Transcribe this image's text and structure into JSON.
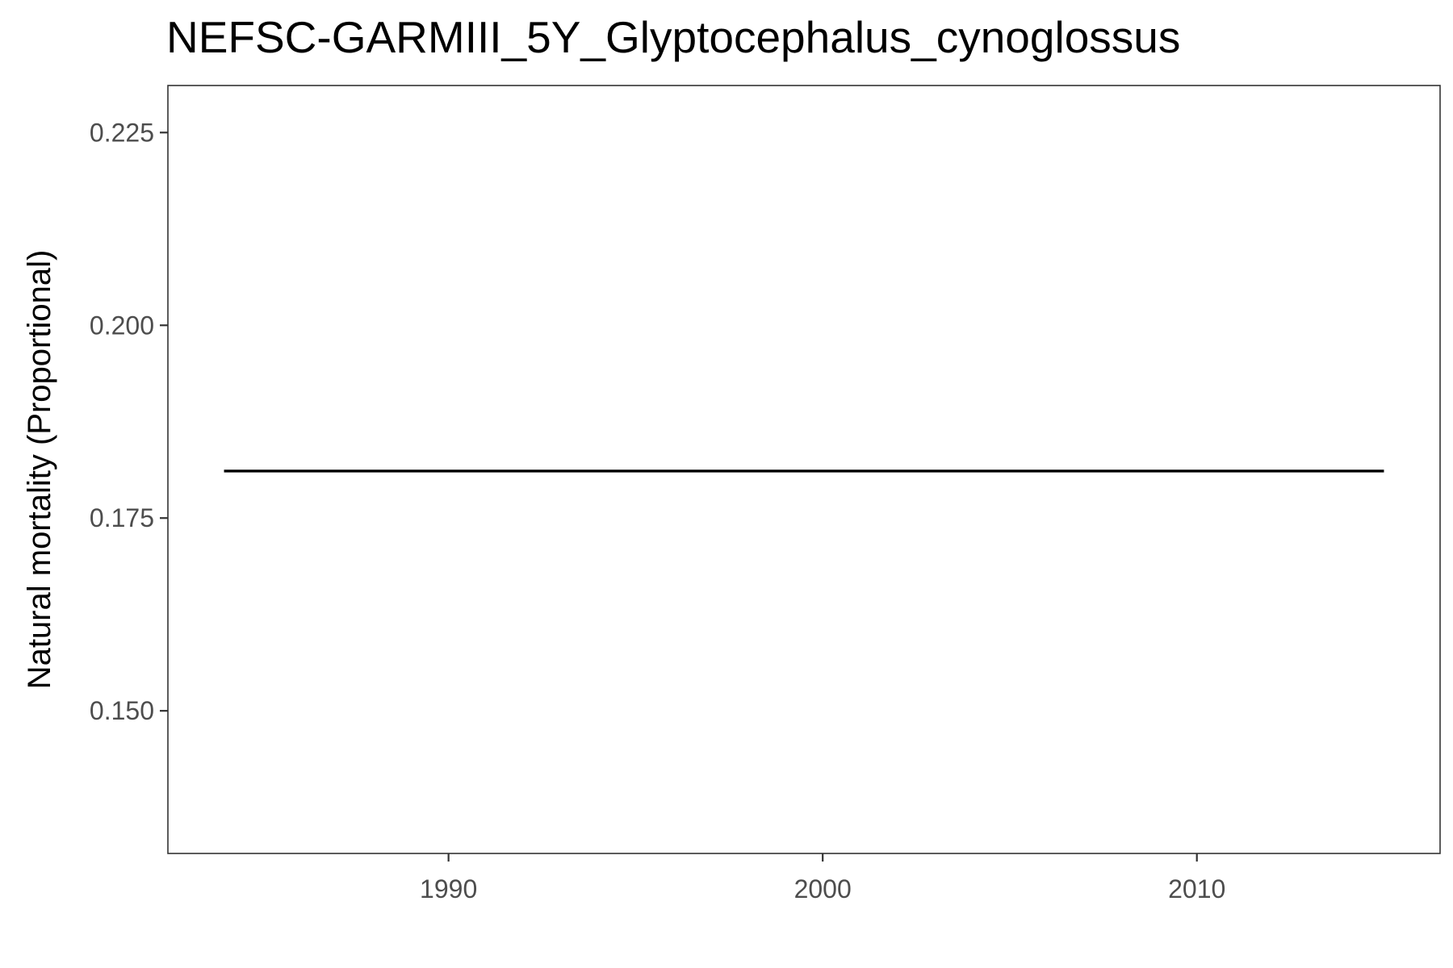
{
  "chart_data": {
    "type": "line",
    "title": "NEFSC-GARMIII_5Y_Glyptocephalus_cynoglossus",
    "xlabel": "",
    "ylabel": "Natural mortality (Proportional)",
    "x": [
      1984,
      2015
    ],
    "series": [
      {
        "values": [
          0.1811,
          0.1811
        ],
        "color": "#000000"
      }
    ],
    "xlim": [
      1982.5,
      2016.5
    ],
    "ylim": [
      0.1315,
      0.2311
    ],
    "xticks": [
      1990,
      2000,
      2010
    ],
    "xtick_labels": [
      "1990",
      "2000",
      "2010"
    ],
    "yticks": [
      0.15,
      0.175,
      0.2,
      0.225
    ],
    "ytick_labels": [
      "0.150",
      "0.175",
      "0.200",
      "0.225"
    ],
    "grid": false,
    "legend": "none"
  }
}
